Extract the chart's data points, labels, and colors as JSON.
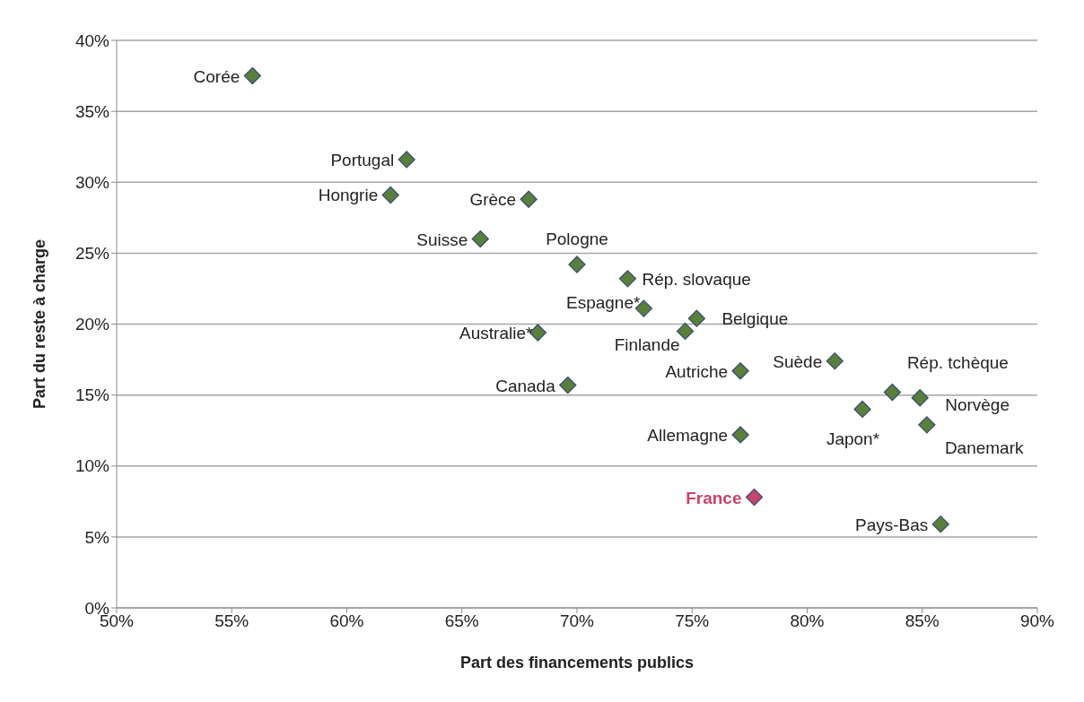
{
  "chart_data": {
    "type": "scatter",
    "xlabel": "Part des financements publics",
    "ylabel": "Part du reste à charge",
    "grid": "y",
    "marker": "diamond",
    "xlim": [
      50,
      90
    ],
    "xticks": [
      {
        "value": 50,
        "label": "50%"
      },
      {
        "value": 55,
        "label": "55%"
      },
      {
        "value": 60,
        "label": "60%"
      },
      {
        "value": 65,
        "label": "65%"
      },
      {
        "value": 70,
        "label": "70%"
      },
      {
        "value": 75,
        "label": "75%"
      },
      {
        "value": 80,
        "label": "80%"
      },
      {
        "value": 85,
        "label": "85%"
      },
      {
        "value": 90,
        "label": "90%"
      }
    ],
    "ylim": [
      0,
      40
    ],
    "yticks": [
      {
        "value": 0,
        "label": "0%"
      },
      {
        "value": 5,
        "label": "5%"
      },
      {
        "value": 10,
        "label": "10%"
      },
      {
        "value": 15,
        "label": "15%"
      },
      {
        "value": 20,
        "label": "20%"
      },
      {
        "value": 25,
        "label": "25%"
      },
      {
        "value": 30,
        "label": "30%"
      },
      {
        "value": 35,
        "label": "35%"
      },
      {
        "value": 40,
        "label": "40%"
      }
    ],
    "series": [
      {
        "color": "#5a7f3a",
        "x": [
          55.9,
          62.6,
          61.9,
          67.9,
          65.8,
          70.0,
          72.2,
          72.9,
          75.2,
          74.7,
          68.3,
          81.2,
          77.1,
          69.6,
          83.7,
          84.9,
          82.4,
          85.2,
          77.1,
          77.7,
          85.8
        ],
        "values": [
          37.5,
          31.6,
          29.1,
          28.8,
          26.0,
          24.2,
          23.2,
          21.1,
          20.4,
          19.5,
          19.4,
          17.4,
          16.7,
          15.7,
          15.2,
          14.8,
          14.0,
          12.9,
          12.2,
          7.8,
          5.9
        ],
        "colors": [
          "#5a7f3a",
          "#5a7f3a",
          "#5a7f3a",
          "#5a7f3a",
          "#5a7f3a",
          "#5a7f3a",
          "#5a7f3a",
          "#5a7f3a",
          "#5a7f3a",
          "#5a7f3a",
          "#5a7f3a",
          "#5a7f3a",
          "#5a7f3a",
          "#5a7f3a",
          "#5a7f3a",
          "#5a7f3a",
          "#5a7f3a",
          "#5a7f3a",
          "#5a7f3a",
          "#c9436a",
          "#5a7f3a"
        ]
      }
    ],
    "annotations": [
      {
        "text": "Corée",
        "x": 55.9,
        "y": 37.5
      },
      {
        "text": "Portugal",
        "x": 62.6,
        "y": 31.6
      },
      {
        "text": "Hongrie",
        "x": 61.9,
        "y": 29.1
      },
      {
        "text": "Grèce",
        "x": 67.9,
        "y": 28.8
      },
      {
        "text": "Suisse",
        "x": 65.8,
        "y": 26.0
      },
      {
        "text": "Pologne",
        "x": 70.0,
        "y": 24.2
      },
      {
        "text": "Rép. slovaque",
        "x": 72.2,
        "y": 23.2
      },
      {
        "text": "Espagne*",
        "x": 72.9,
        "y": 21.1
      },
      {
        "text": "Belgique",
        "x": 75.2,
        "y": 20.4
      },
      {
        "text": "Finlande",
        "x": 74.7,
        "y": 19.5
      },
      {
        "text": "Australie*",
        "x": 68.3,
        "y": 19.4
      },
      {
        "text": "Suède",
        "x": 81.2,
        "y": 17.4
      },
      {
        "text": "Autriche",
        "x": 77.1,
        "y": 16.7
      },
      {
        "text": "Canada",
        "x": 69.6,
        "y": 15.7
      },
      {
        "text": "Rép. tchèque",
        "x": 83.7,
        "y": 15.2
      },
      {
        "text": "Norvège",
        "x": 84.9,
        "y": 14.8
      },
      {
        "text": "Japon*",
        "x": 82.4,
        "y": 14.0
      },
      {
        "text": "Danemark",
        "x": 85.2,
        "y": 12.9
      },
      {
        "text": "Allemagne",
        "x": 77.1,
        "y": 12.2
      },
      {
        "text": "France",
        "x": 77.7,
        "y": 7.8
      },
      {
        "text": "Pays-Bas",
        "x": 85.8,
        "y": 5.9
      }
    ]
  }
}
